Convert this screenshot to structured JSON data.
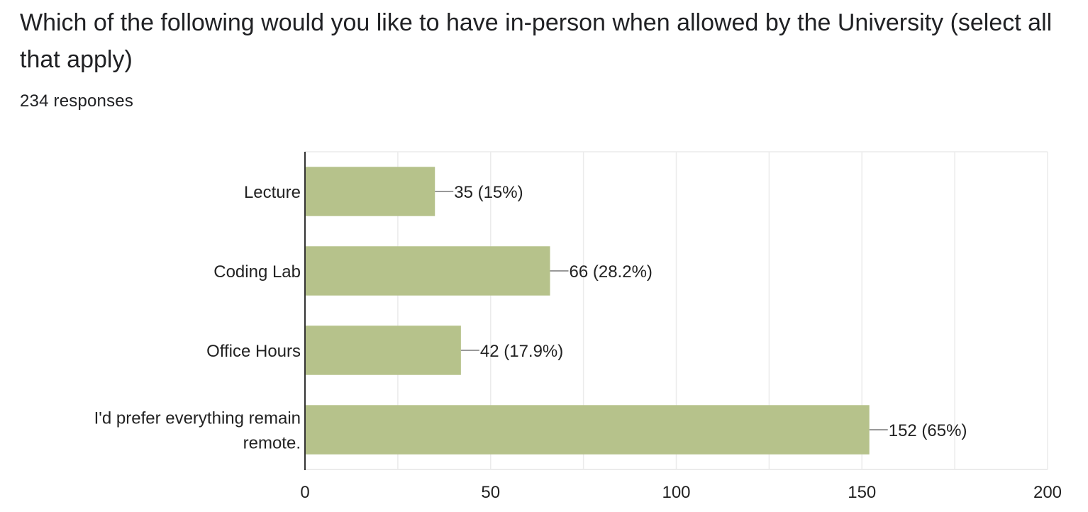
{
  "header": {
    "title": "Which of the following would you like to have in-person when allowed by the University (select all that apply)",
    "responses": "234 responses"
  },
  "colors": {
    "bar": "#b6c28b",
    "grid": "#ebebeb",
    "axis": "#333333",
    "leader": "#999999",
    "text": "#222222"
  },
  "chart_data": {
    "type": "bar",
    "orientation": "horizontal",
    "categories": [
      "Lecture",
      "Coding Lab",
      "Office Hours",
      "I'd prefer everything remain remote."
    ],
    "category_lines": [
      [
        "Lecture"
      ],
      [
        "Coding Lab"
      ],
      [
        "Office Hours"
      ],
      [
        "I'd prefer everything remain",
        "remote."
      ]
    ],
    "values": [
      35,
      66,
      42,
      152
    ],
    "data_labels": [
      "35 (15%)",
      "66 (28.2%)",
      "42 (17.9%)",
      "152 (65%)"
    ],
    "xlim": [
      0,
      200
    ],
    "x_ticks": [
      0,
      50,
      100,
      150,
      200
    ],
    "x_tick_labels": [
      "0",
      "50",
      "100",
      "150",
      "200"
    ],
    "minor_grid_step": 25,
    "grid": true,
    "legend": "none"
  }
}
